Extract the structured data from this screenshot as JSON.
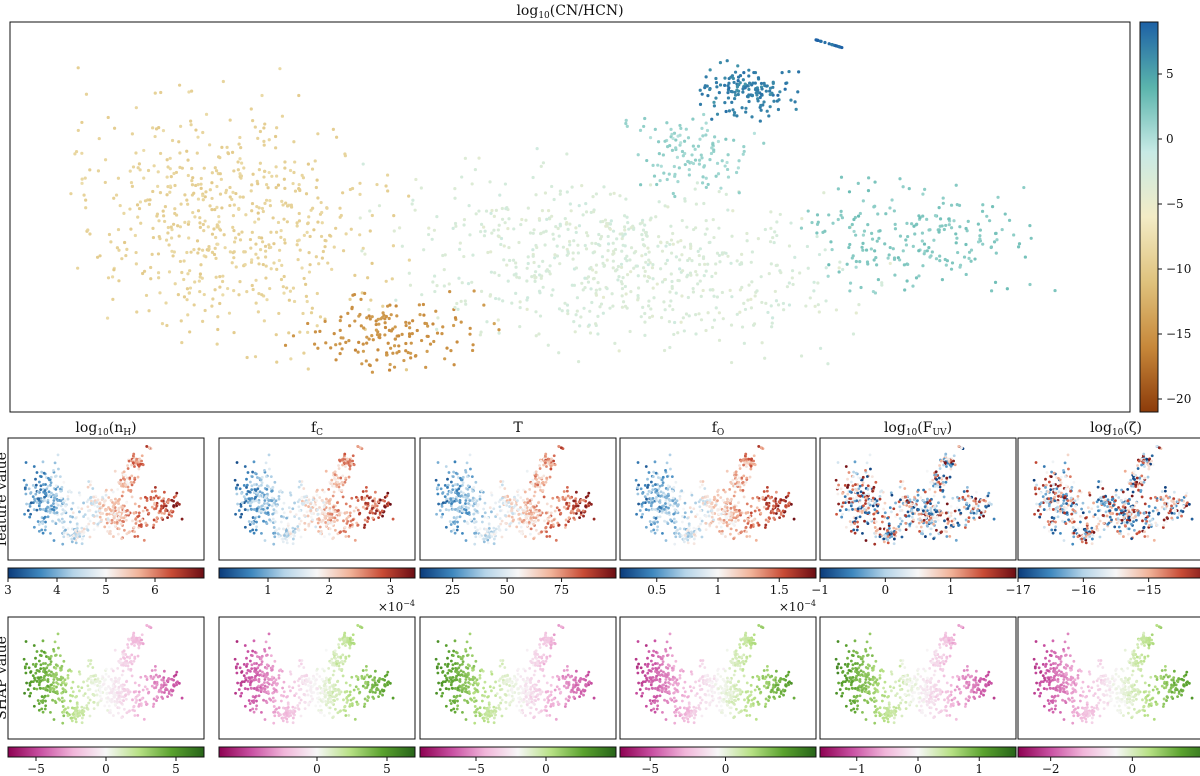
{
  "figure": {
    "row_labels": {
      "feature": "feature value",
      "shap": "SHAP value"
    }
  },
  "chart_data": [
    {
      "type": "scatter",
      "role": "main",
      "title_base": "log",
      "title_sub": "10",
      "title_rest": "(CN/HCN)",
      "colormap": "BrBG",
      "colorbar": {
        "range": [
          -21,
          9
        ],
        "ticks": [
          -20,
          -15,
          -10,
          -5,
          0,
          5
        ]
      },
      "clusters": [
        {
          "name": "left-lobe",
          "value": -9
        },
        {
          "name": "lower-loop",
          "value": -15
        },
        {
          "name": "middle-body",
          "value": -3
        },
        {
          "name": "right-tip",
          "value": 2
        },
        {
          "name": "upper-arm",
          "value": 1
        },
        {
          "name": "top-cluster",
          "value": 7
        },
        {
          "name": "isolated-arc",
          "value": 8.5
        }
      ]
    },
    {
      "type": "scatter",
      "role": "feature",
      "column": 0,
      "title_base": "log",
      "title_sub": "10",
      "title_rest": "(n",
      "title_sub2": "H",
      "title_end": ")",
      "colormap": "RdBu_r",
      "colorbar": {
        "range": [
          3,
          7
        ],
        "ticks": [
          3,
          4,
          5,
          6
        ]
      },
      "scale_label": ""
    },
    {
      "type": "scatter",
      "role": "feature",
      "column": 1,
      "title_base": "f",
      "title_sub": "C",
      "colormap": "RdBu_r",
      "colorbar": {
        "range": [
          0.2,
          3.4
        ],
        "ticks": [
          1,
          2,
          3
        ]
      },
      "scale_label": ""
    },
    {
      "type": "scatter",
      "role": "feature",
      "column": 2,
      "title_base": "T",
      "colormap": "RdBu_r",
      "colorbar": {
        "range": [
          10,
          100
        ],
        "ticks": [
          25,
          50,
          75
        ]
      },
      "scale_label": ""
    },
    {
      "type": "scatter",
      "role": "feature",
      "column": 3,
      "title_base": "f",
      "title_sub": "O",
      "colormap": "RdBu_r",
      "colorbar": {
        "range": [
          0.2,
          1.8
        ],
        "ticks": [
          0.5,
          1.0,
          1.5
        ]
      },
      "scale_label": ""
    },
    {
      "type": "scatter",
      "role": "feature",
      "column": 4,
      "title_base": "log",
      "title_sub": "10",
      "title_rest": "(F",
      "title_sub2": "UV",
      "title_end": ")",
      "colormap": "RdBu_r",
      "colorbar": {
        "range": [
          -1,
          2
        ],
        "ticks": [
          -1,
          0,
          1
        ]
      },
      "scale_label": ""
    },
    {
      "type": "scatter",
      "role": "feature",
      "column": 5,
      "title_base": "log",
      "title_sub": "10",
      "title_rest": "(ζ)",
      "colormap": "RdBu_r",
      "colorbar": {
        "range": [
          -17,
          -14
        ],
        "ticks": [
          -17,
          -16,
          -15
        ]
      },
      "scale_label": ""
    },
    {
      "type": "scatter",
      "role": "shap",
      "column": 0,
      "colormap": "PiYG",
      "colorbar": {
        "range": [
          -7,
          7
        ],
        "ticks": [
          -5,
          0,
          5
        ]
      },
      "scale_label": ""
    },
    {
      "type": "scatter",
      "role": "shap",
      "column": 1,
      "colormap": "PiYG",
      "colorbar": {
        "range": [
          -7,
          7
        ],
        "ticks": [
          0,
          5
        ]
      },
      "scale_label": "×10",
      "scale_exp": "−4"
    },
    {
      "type": "scatter",
      "role": "shap",
      "column": 2,
      "colormap": "PiYG",
      "colorbar": {
        "range": [
          -9,
          5
        ],
        "ticks": [
          -5,
          0
        ]
      },
      "scale_label": ""
    },
    {
      "type": "scatter",
      "role": "shap",
      "column": 3,
      "colormap": "PiYG",
      "colorbar": {
        "range": [
          -7,
          6
        ],
        "ticks": [
          -5,
          0
        ]
      },
      "scale_label": "×10",
      "scale_exp": "−4"
    },
    {
      "type": "scatter",
      "role": "shap",
      "column": 4,
      "colormap": "PiYG",
      "colorbar": {
        "range": [
          -1.6,
          1.6
        ],
        "ticks": [
          -1,
          0,
          1
        ]
      },
      "scale_label": ""
    },
    {
      "type": "scatter",
      "role": "shap",
      "column": 5,
      "colormap": "PiYG",
      "colorbar": {
        "range": [
          -2.8,
          2.0
        ],
        "ticks": [
          -2,
          0
        ]
      },
      "scale_label": ""
    }
  ]
}
